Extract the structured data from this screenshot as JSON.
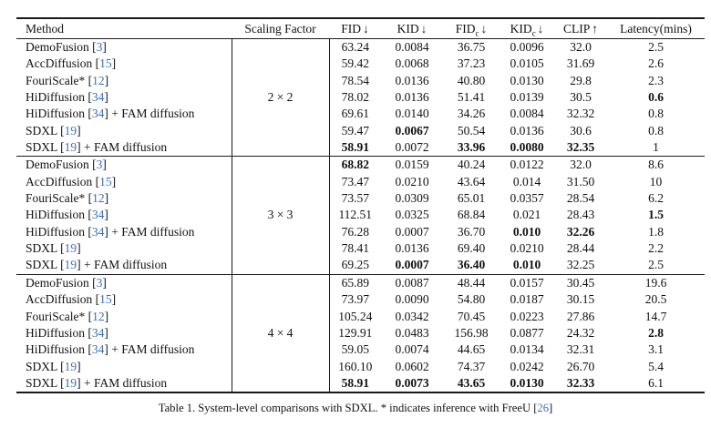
{
  "colors": {
    "cite_blue": "#3b6fb6",
    "rule": "#1a1a1a",
    "text": "#111111",
    "background": "#ffffff"
  },
  "caption": {
    "pre": "Table 1. System-level comparisons with SDXL. * indicates inference with FreeU [",
    "cite": "26",
    "post": "]"
  },
  "table": {
    "headers": [
      {
        "text": "Method",
        "sub": "",
        "arrow": ""
      },
      {
        "text": "Scaling Factor",
        "sub": "",
        "arrow": ""
      },
      {
        "text": "FID",
        "sub": "",
        "arrow": "↓"
      },
      {
        "text": "KID",
        "sub": "",
        "arrow": "↓"
      },
      {
        "text": "FID",
        "sub": "c",
        "arrow": "↓"
      },
      {
        "text": "KID",
        "sub": "c",
        "arrow": "↓"
      },
      {
        "text": "CLIP",
        "sub": "",
        "arrow": "↑"
      },
      {
        "text": "Latency(mins)",
        "sub": "",
        "arrow": ""
      }
    ],
    "groups": [
      {
        "scaling": "2 × 2",
        "rows": [
          {
            "m_pre": "DemoFusion [",
            "cite": "3",
            "m_post": "]",
            "values": [
              "63.24",
              "0.0084",
              "36.75",
              "0.0096",
              "32.0",
              "2.5"
            ],
            "bold": []
          },
          {
            "m_pre": "AccDiffusion [",
            "cite": "15",
            "m_post": "]",
            "values": [
              "59.42",
              "0.0068",
              "37.23",
              "0.0105",
              "31.69",
              "2.6"
            ],
            "bold": []
          },
          {
            "m_pre": "FouriScale* [",
            "cite": "12",
            "m_post": "]",
            "values": [
              "78.54",
              "0.0136",
              "40.80",
              "0.0130",
              "29.8",
              "2.3"
            ],
            "bold": []
          },
          {
            "m_pre": "HiDiffusion [",
            "cite": "34",
            "m_post": "]",
            "values": [
              "78.02",
              "0.0136",
              "51.41",
              "0.0139",
              "30.5",
              "0.6"
            ],
            "bold": [
              5
            ]
          },
          {
            "m_pre": "HiDiffusion [",
            "cite": "34",
            "m_post": "] + FAM diffusion",
            "values": [
              "69.61",
              "0.0140",
              "34.26",
              "0.0084",
              "32.32",
              "0.8"
            ],
            "bold": []
          },
          {
            "m_pre": "SDXL [",
            "cite": "19",
            "m_post": "]",
            "values": [
              "59.47",
              "0.0067",
              "50.54",
              "0.0136",
              "30.6",
              "0.8"
            ],
            "bold": [
              1
            ]
          },
          {
            "m_pre": "SDXL [",
            "cite": "19",
            "m_post": "] + FAM diffusion",
            "values": [
              "58.91",
              "0.0072",
              "33.96",
              "0.0080",
              "32.35",
              "1"
            ],
            "bold": [
              0,
              2,
              3,
              4
            ]
          }
        ]
      },
      {
        "scaling": "3 × 3",
        "rows": [
          {
            "m_pre": "DemoFusion [",
            "cite": "3",
            "m_post": "]",
            "values": [
              "68.82",
              "0.0159",
              "40.24",
              "0.0122",
              "32.0",
              "8.6"
            ],
            "bold": [
              0
            ]
          },
          {
            "m_pre": "AccDiffusion [",
            "cite": "15",
            "m_post": "]",
            "values": [
              "73.47",
              "0.0210",
              "43.64",
              "0.014",
              "31.50",
              "10"
            ],
            "bold": []
          },
          {
            "m_pre": "FouriScale* [",
            "cite": "12",
            "m_post": "]",
            "values": [
              "73.57",
              "0.0309",
              "65.01",
              "0.0357",
              "28.54",
              "6.2"
            ],
            "bold": []
          },
          {
            "m_pre": "HiDiffusion [",
            "cite": "34",
            "m_post": "]",
            "values": [
              "112.51",
              "0.0325",
              "68.84",
              "0.021",
              "28.43",
              "1.5"
            ],
            "bold": [
              5
            ]
          },
          {
            "m_pre": "HiDiffusion [",
            "cite": "34",
            "m_post": "] + FAM diffusion",
            "values": [
              "76.28",
              "0.0007",
              "36.70",
              "0.010",
              "32.26",
              "1.8"
            ],
            "bold": [
              3,
              4
            ]
          },
          {
            "m_pre": "SDXL [",
            "cite": "19",
            "m_post": "]",
            "values": [
              "78.41",
              "0.0136",
              "69.40",
              "0.0210",
              "28.44",
              "2.2"
            ],
            "bold": []
          },
          {
            "m_pre": "SDXL [",
            "cite": "19",
            "m_post": "] + FAM diffusion",
            "values": [
              "69.25",
              "0.0007",
              "36.40",
              "0.010",
              "32.25",
              "2.5"
            ],
            "bold": [
              1,
              2,
              3
            ]
          }
        ]
      },
      {
        "scaling": "4 × 4",
        "rows": [
          {
            "m_pre": "DemoFusion [",
            "cite": "3",
            "m_post": "]",
            "values": [
              "65.89",
              "0.0087",
              "48.44",
              "0.0157",
              "30.45",
              "19.6"
            ],
            "bold": []
          },
          {
            "m_pre": "AccDiffusion [",
            "cite": "15",
            "m_post": "]",
            "values": [
              "73.97",
              "0.0090",
              "54.80",
              "0.0187",
              "30.15",
              "20.5"
            ],
            "bold": []
          },
          {
            "m_pre": "FouriScale* [",
            "cite": "12",
            "m_post": "]",
            "values": [
              "105.24",
              "0.0342",
              "70.45",
              "0.0223",
              "27.86",
              "14.7"
            ],
            "bold": []
          },
          {
            "m_pre": "HiDiffusion [",
            "cite": "34",
            "m_post": "]",
            "values": [
              "129.91",
              "0.0483",
              "156.98",
              "0.0877",
              "24.32",
              "2.8"
            ],
            "bold": [
              5
            ]
          },
          {
            "m_pre": "HiDiffusion [",
            "cite": "34",
            "m_post": "] + FAM diffusion",
            "values": [
              "59.05",
              "0.0074",
              "44.65",
              "0.0134",
              "32.31",
              "3.1"
            ],
            "bold": []
          },
          {
            "m_pre": "SDXL [",
            "cite": "19",
            "m_post": "]",
            "values": [
              "160.10",
              "0.0602",
              "74.37",
              "0.0242",
              "26.70",
              "5.4"
            ],
            "bold": []
          },
          {
            "m_pre": "SDXL [",
            "cite": "19",
            "m_post": "] + FAM diffusion",
            "values": [
              "58.91",
              "0.0073",
              "43.65",
              "0.0130",
              "32.33",
              "6.1"
            ],
            "bold": [
              0,
              1,
              2,
              3,
              4
            ]
          }
        ]
      }
    ]
  }
}
